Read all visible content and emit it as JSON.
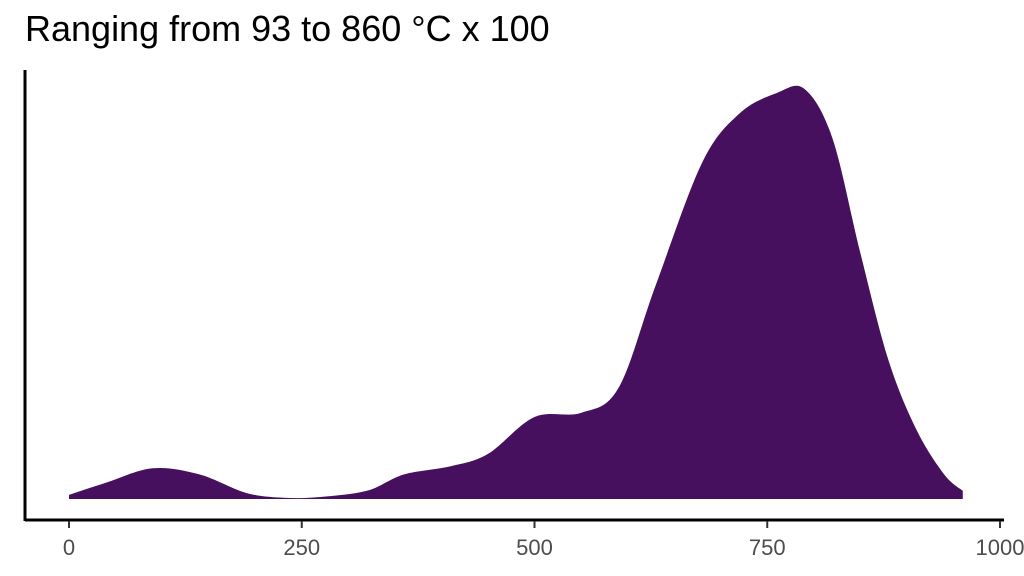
{
  "chart_data": {
    "type": "area",
    "title": "Ranging from 93 to 860 °C x 100",
    "xlabel": "",
    "ylabel": "",
    "xlim": [
      0,
      1000
    ],
    "ylim": [
      0,
      1
    ],
    "grid": false,
    "x_ticks": [
      "0",
      "250",
      "500",
      "750",
      "1000"
    ],
    "fill_color": "#46105E",
    "series": [
      {
        "x": [
          0,
          40,
          90,
          140,
          190,
          230,
          270,
          320,
          360,
          410,
          450,
          500,
          550,
          590,
          630,
          680,
          720,
          760,
          790,
          820,
          850,
          880,
          910,
          940,
          960
        ],
        "y": [
          0.01,
          0.04,
          0.075,
          0.06,
          0.015,
          0.003,
          0.005,
          0.02,
          0.06,
          0.08,
          0.11,
          0.2,
          0.21,
          0.27,
          0.52,
          0.82,
          0.94,
          0.99,
          1.0,
          0.88,
          0.6,
          0.34,
          0.17,
          0.06,
          0.02
        ]
      }
    ]
  }
}
